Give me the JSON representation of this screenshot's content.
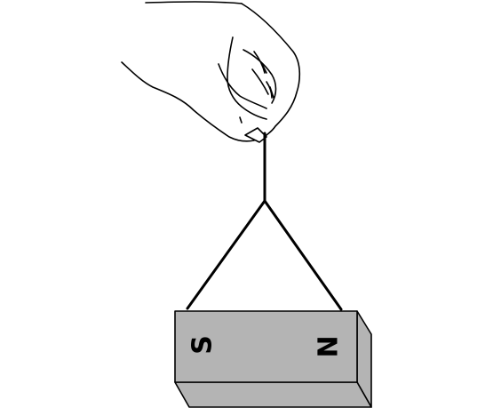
{
  "diagram": {
    "magnet": {
      "left_pole": "S",
      "right_pole": "N",
      "face_color": "#b4b4b4",
      "edge_color": "#000000"
    },
    "line_color": "#000000",
    "icons": {
      "hand": "hand-icon"
    }
  }
}
